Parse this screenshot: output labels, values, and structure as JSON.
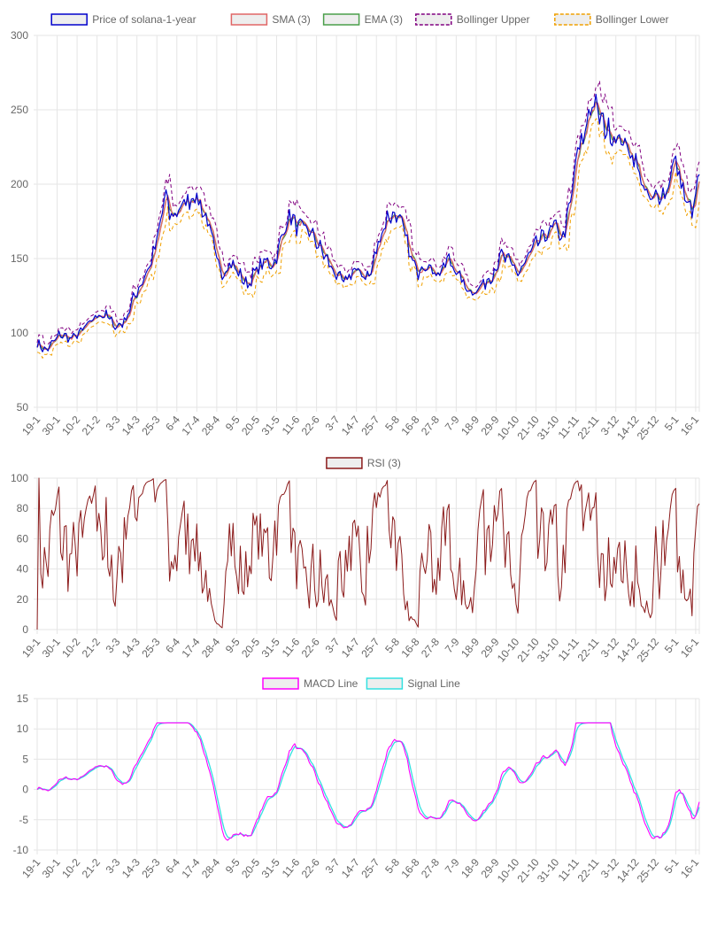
{
  "x_labels": [
    "19-1",
    "30-1",
    "10-2",
    "21-2",
    "3-3",
    "14-3",
    "25-3",
    "6-4",
    "17-4",
    "28-4",
    "9-5",
    "20-5",
    "31-5",
    "11-6",
    "22-6",
    "3-7",
    "14-7",
    "25-7",
    "5-8",
    "16-8",
    "27-8",
    "7-9",
    "18-9",
    "29-9",
    "10-10",
    "21-10",
    "31-10",
    "11-11",
    "22-11",
    "3-12",
    "14-12",
    "25-12",
    "5-1",
    "16-1"
  ],
  "colors": {
    "price": "#0000cc",
    "sma": "#e06666",
    "ema": "#4a9f4a",
    "bb_upper": "#800080",
    "bb_lower": "#f0a000",
    "rsi": "#8b1a1a",
    "macd": "#ff00ff",
    "signal": "#33e0e0",
    "grid": "#e5e5e5"
  },
  "chart_data": [
    {
      "type": "line",
      "id": "price",
      "ylim": [
        50,
        300
      ],
      "yticks": [
        50,
        100,
        150,
        200,
        250,
        300
      ],
      "legend": [
        {
          "label": "Price of solana-1-year",
          "key": "price",
          "dashed": false
        },
        {
          "label": "SMA (3)",
          "key": "sma",
          "dashed": false
        },
        {
          "label": "EMA (3)",
          "key": "ema",
          "dashed": false
        },
        {
          "label": "Bollinger Upper",
          "key": "bb_upper",
          "dashed": true
        },
        {
          "label": "Bollinger Lower",
          "key": "bb_lower",
          "dashed": true
        }
      ],
      "price_anchors": [
        [
          0,
          93
        ],
        [
          0.5,
          88
        ],
        [
          1.3,
          99
        ],
        [
          2,
          96
        ],
        [
          2.8,
          104
        ],
        [
          3.5,
          113
        ],
        [
          4,
          111
        ],
        [
          4.5,
          104
        ],
        [
          5,
          108
        ],
        [
          5.5,
          123
        ],
        [
          6,
          135
        ],
        [
          6.5,
          147
        ],
        [
          7,
          170
        ],
        [
          7.3,
          195
        ],
        [
          7.6,
          177
        ],
        [
          8,
          182
        ],
        [
          8.5,
          188
        ],
        [
          9,
          193
        ],
        [
          9.4,
          184
        ],
        [
          9.8,
          173
        ],
        [
          10.2,
          150
        ],
        [
          10.6,
          140
        ],
        [
          11,
          148
        ],
        [
          11.5,
          140
        ],
        [
          12,
          132
        ],
        [
          12.5,
          142
        ],
        [
          13,
          148
        ],
        [
          13.5,
          146
        ],
        [
          14,
          165
        ],
        [
          14.4,
          180
        ],
        [
          14.8,
          172
        ],
        [
          15.2,
          170
        ],
        [
          15.6,
          168
        ],
        [
          16,
          160
        ],
        [
          16.5,
          150
        ],
        [
          17,
          140
        ],
        [
          17.5,
          133
        ],
        [
          18,
          142
        ],
        [
          18.5,
          140
        ],
        [
          19,
          138
        ],
        [
          19.5,
          162
        ],
        [
          20,
          178
        ],
        [
          20.5,
          180
        ],
        [
          20.9,
          170
        ],
        [
          21.3,
          152
        ],
        [
          21.7,
          140
        ],
        [
          22,
          148
        ],
        [
          22.5,
          143
        ],
        [
          23,
          140
        ],
        [
          23.5,
          150
        ],
        [
          24,
          140
        ],
        [
          24.5,
          130
        ],
        [
          25,
          128
        ],
        [
          25.5,
          133
        ],
        [
          26,
          140
        ],
        [
          26.5,
          152
        ],
        [
          27,
          147
        ],
        [
          27.5,
          140
        ],
        [
          28,
          150
        ],
        [
          28.5,
          160
        ],
        [
          29,
          165
        ],
        [
          29.5,
          172
        ],
        [
          30,
          163
        ],
        [
          30.5,
          190
        ],
        [
          30.8,
          220
        ],
        [
          31.2,
          230
        ],
        [
          31.5,
          250
        ],
        [
          31.8,
          255
        ],
        [
          32.1,
          245
        ],
        [
          32.5,
          237
        ],
        [
          33,
          232
        ],
        [
          33.5,
          228
        ],
        [
          34,
          220
        ],
        [
          34.3,
          210
        ],
        [
          34.7,
          195
        ],
        [
          35,
          188
        ],
        [
          35.5,
          193
        ],
        [
          36,
          196
        ],
        [
          36.3,
          217
        ],
        [
          36.7,
          205
        ],
        [
          37.1,
          185
        ],
        [
          37.5,
          183
        ],
        [
          37.8,
          210
        ]
      ],
      "sma_values": "smoothed(price, 3)",
      "ema_values": "ema(price, 3)"
    },
    {
      "type": "line",
      "id": "rsi",
      "ylim": [
        0,
        100
      ],
      "yticks": [
        0,
        20,
        40,
        60,
        80,
        100
      ],
      "legend": [
        {
          "label": "RSI (3)",
          "key": "rsi",
          "dashed": false
        }
      ]
    },
    {
      "type": "line",
      "id": "macd",
      "ylim": [
        -10,
        15
      ],
      "yticks": [
        -10,
        -5,
        0,
        5,
        10,
        15
      ],
      "legend": [
        {
          "label": "MACD Line",
          "key": "macd",
          "dashed": false
        },
        {
          "label": "Signal Line",
          "key": "signal",
          "dashed": false
        }
      ]
    }
  ]
}
